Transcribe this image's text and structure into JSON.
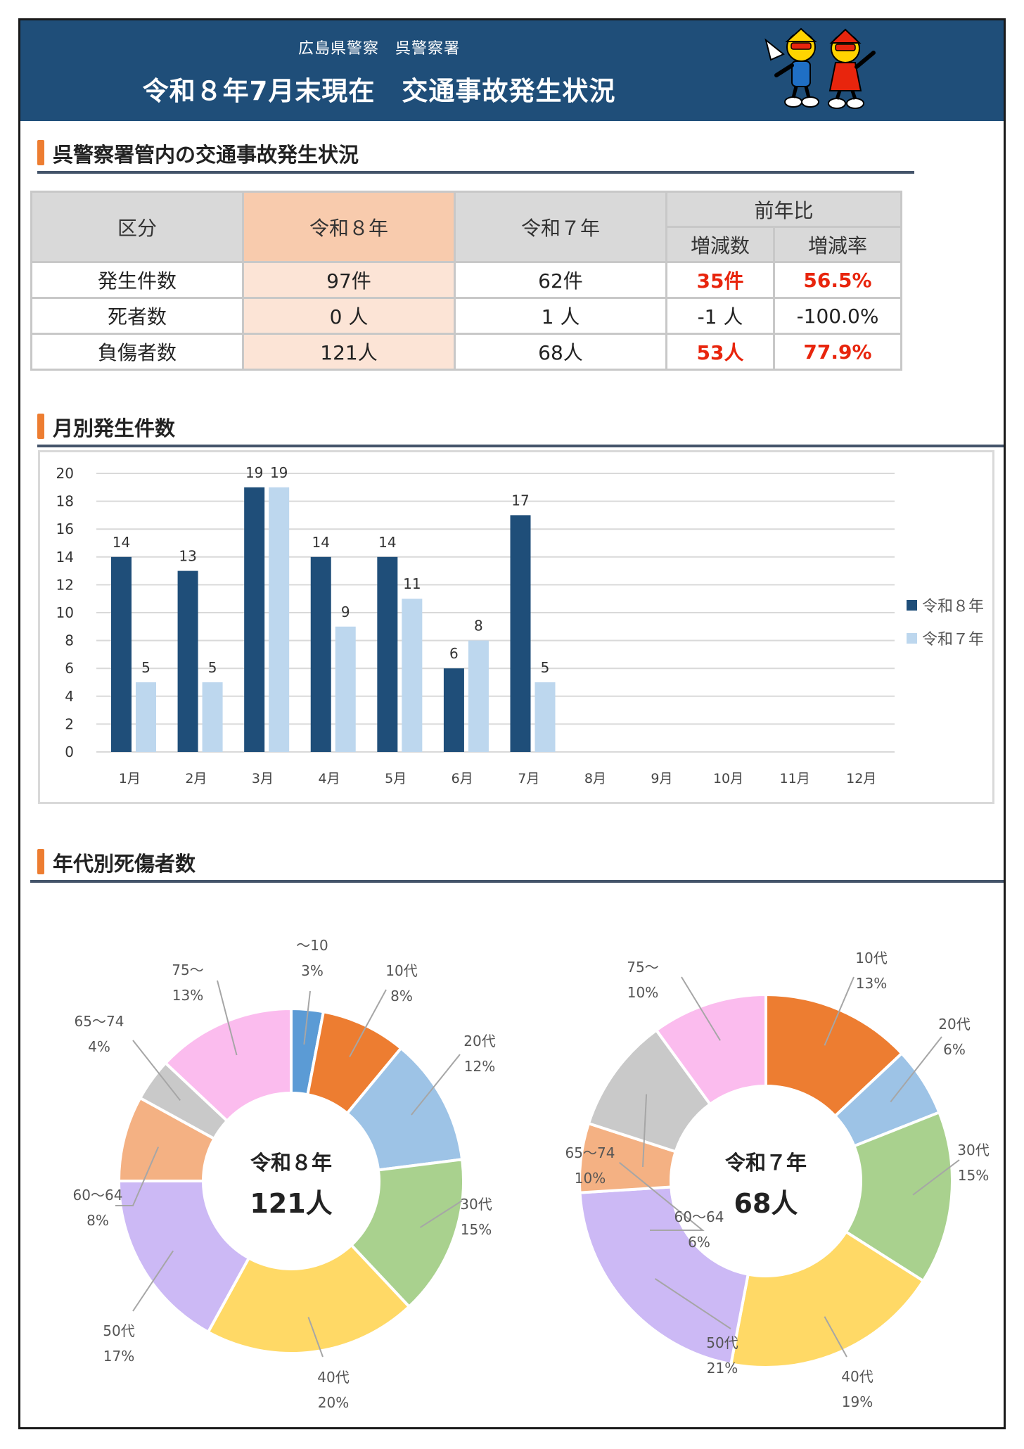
{
  "header": {
    "org": "広島県警察　呉警察署",
    "title": "令和８年7月末現在　交通事故発生状況"
  },
  "section1": {
    "title": "呉警察署管内の交通事故発生状況",
    "table": {
      "col_category": "区分",
      "col_current": "令和８年",
      "col_previous": "令和７年",
      "col_compare": "前年比",
      "col_diff": "増減数",
      "col_rate": "増減率",
      "rows": [
        {
          "label": "発生件数",
          "current": "97件",
          "previous": "62件",
          "diff": "35件",
          "rate": "56.5%",
          "highlight": true
        },
        {
          "label": "死者数",
          "current": "0 人",
          "previous": "1 人",
          "diff": "-1 人",
          "rate": "-100.0%",
          "highlight": false
        },
        {
          "label": "負傷者数",
          "current": "121人",
          "previous": "68人",
          "diff": "53人",
          "rate": "77.9%",
          "highlight": true
        }
      ]
    }
  },
  "section2": {
    "title": "月別発生件数"
  },
  "section3": {
    "title": "年代別死傷者数"
  },
  "chart_data": [
    {
      "type": "bar",
      "categories": [
        "1月",
        "2月",
        "3月",
        "4月",
        "5月",
        "6月",
        "7月",
        "8月",
        "9月",
        "10月",
        "11月",
        "12月"
      ],
      "series": [
        {
          "name": "令和８年",
          "values": [
            14,
            13,
            19,
            14,
            14,
            6,
            17,
            null,
            null,
            null,
            null,
            null
          ],
          "color": "#1f4e79"
        },
        {
          "name": "令和７年",
          "values": [
            5,
            5,
            19,
            9,
            11,
            8,
            5,
            null,
            null,
            null,
            null,
            null
          ],
          "color": "#bdd7ee"
        }
      ],
      "ylim": [
        0,
        20
      ],
      "yticks": [
        0,
        2,
        4,
        6,
        8,
        10,
        12,
        14,
        16,
        18,
        20
      ],
      "grid": true,
      "legend": "right"
    },
    {
      "type": "pie",
      "center_label": "令和８年",
      "center_value": "121人",
      "slices": [
        {
          "label": "～10",
          "pct": "3%",
          "value": 3,
          "color": "#5b9bd5"
        },
        {
          "label": "10代",
          "pct": "8%",
          "value": 8,
          "color": "#ed7d31"
        },
        {
          "label": "20代",
          "pct": "12%",
          "value": 12,
          "color": "#9dc3e6"
        },
        {
          "label": "30代",
          "pct": "15%",
          "value": 15,
          "color": "#a9d18e"
        },
        {
          "label": "40代",
          "pct": "20%",
          "value": 20,
          "color": "#ffd966"
        },
        {
          "label": "50代",
          "pct": "17%",
          "value": 17,
          "color": "#ccb9f5"
        },
        {
          "label": "60～64",
          "pct": "8%",
          "value": 8,
          "color": "#f4b183"
        },
        {
          "label": "65～74",
          "pct": "4%",
          "value": 4,
          "color": "#c9c9c9"
        },
        {
          "label": "75～",
          "pct": "13%",
          "value": 13,
          "color": "#fbbcee"
        }
      ]
    },
    {
      "type": "pie",
      "center_label": "令和７年",
      "center_value": "68人",
      "slices": [
        {
          "label": "10代",
          "pct": "13%",
          "value": 13,
          "color": "#ed7d31"
        },
        {
          "label": "20代",
          "pct": "6%",
          "value": 6,
          "color": "#9dc3e6"
        },
        {
          "label": "30代",
          "pct": "15%",
          "value": 15,
          "color": "#a9d18e"
        },
        {
          "label": "40代",
          "pct": "19%",
          "value": 19,
          "color": "#ffd966"
        },
        {
          "label": "50代",
          "pct": "21%",
          "value": 21,
          "color": "#ccb9f5"
        },
        {
          "label": "60～64",
          "pct": "6%",
          "value": 6,
          "color": "#f4b183"
        },
        {
          "label": "65～74",
          "pct": "10%",
          "value": 10,
          "color": "#c9c9c9"
        },
        {
          "label": "75～",
          "pct": "10%",
          "value": 10,
          "color": "#fbbcee"
        }
      ]
    }
  ]
}
